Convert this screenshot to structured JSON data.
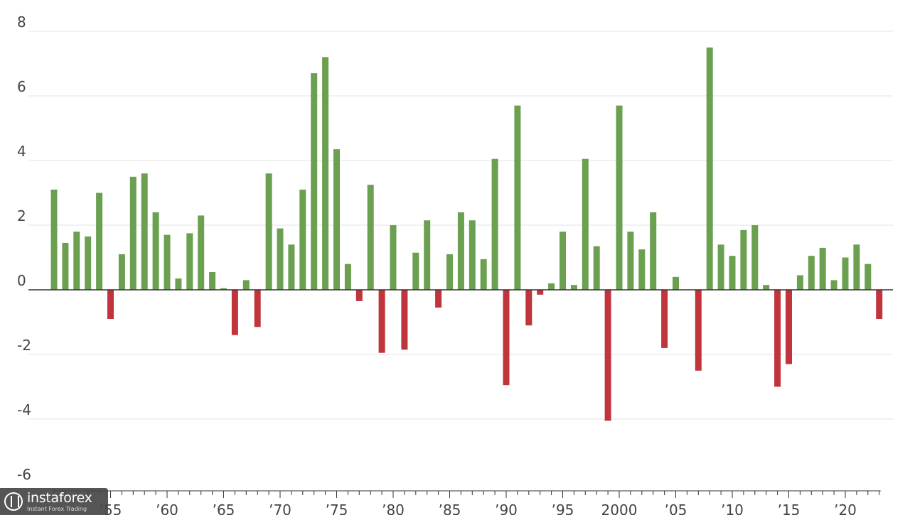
{
  "chart_data": {
    "type": "bar",
    "title": "",
    "xlabel": "",
    "ylabel": "",
    "ylim": [
      -6,
      8
    ],
    "yticks": [
      8,
      6,
      4,
      2,
      0,
      -2,
      -4,
      -6
    ],
    "grid": true,
    "positive_color": "#6aa04f",
    "negative_color": "#c0353b",
    "years": [
      1950,
      1951,
      1952,
      1953,
      1954,
      1955,
      1956,
      1957,
      1958,
      1959,
      1960,
      1961,
      1962,
      1963,
      1964,
      1965,
      1966,
      1967,
      1968,
      1969,
      1970,
      1971,
      1972,
      1973,
      1974,
      1975,
      1976,
      1977,
      1978,
      1979,
      1980,
      1981,
      1982,
      1983,
      1984,
      1985,
      1986,
      1987,
      1988,
      1989,
      1990,
      1991,
      1992,
      1993,
      1994,
      1995,
      1996,
      1997,
      1998,
      1999,
      2000,
      2001,
      2002,
      2003,
      2004,
      2005,
      2006,
      2007,
      2008,
      2009,
      2010,
      2011,
      2012,
      2013,
      2014,
      2015,
      2016,
      2017,
      2018,
      2019,
      2020,
      2021,
      2022,
      2023
    ],
    "values": [
      3.1,
      1.45,
      1.8,
      1.65,
      3.0,
      -0.9,
      1.1,
      3.5,
      3.6,
      2.4,
      1.7,
      0.35,
      1.75,
      2.3,
      0.55,
      0.05,
      -1.4,
      0.3,
      -1.15,
      3.6,
      1.9,
      1.4,
      3.1,
      6.7,
      7.2,
      4.35,
      0.8,
      -0.35,
      3.25,
      -1.95,
      2.0,
      -1.85,
      1.15,
      2.15,
      -0.55,
      1.1,
      2.4,
      2.15,
      0.95,
      4.05,
      -2.95,
      5.7,
      -1.1,
      -0.15,
      0.2,
      1.8,
      0.15,
      4.05,
      1.35,
      -4.05,
      5.7,
      1.8,
      1.25,
      2.4,
      -1.8,
      0.4,
      0.0,
      -2.5,
      7.5,
      1.4,
      1.05,
      1.85,
      2.0,
      0.15,
      -3.0,
      -2.3,
      0.45,
      1.05,
      1.3,
      0.3,
      1.0,
      1.4,
      0.8,
      -0.9
    ],
    "x_tick_labels": [
      {
        "year": 1955,
        "label": "’55"
      },
      {
        "year": 1960,
        "label": "’60"
      },
      {
        "year": 1965,
        "label": "’65"
      },
      {
        "year": 1970,
        "label": "’70"
      },
      {
        "year": 1975,
        "label": "’75"
      },
      {
        "year": 1980,
        "label": "’80"
      },
      {
        "year": 1985,
        "label": "’85"
      },
      {
        "year": 1990,
        "label": "’90"
      },
      {
        "year": 1995,
        "label": "’95"
      },
      {
        "year": 2000,
        "label": "2000"
      },
      {
        "year": 2005,
        "label": "’05"
      },
      {
        "year": 2010,
        "label": "’10"
      },
      {
        "year": 2015,
        "label": "’15"
      },
      {
        "year": 2020,
        "label": "’20"
      }
    ]
  },
  "watermark": {
    "brand": "instaforex",
    "tagline": "Instant Forex Trading"
  }
}
